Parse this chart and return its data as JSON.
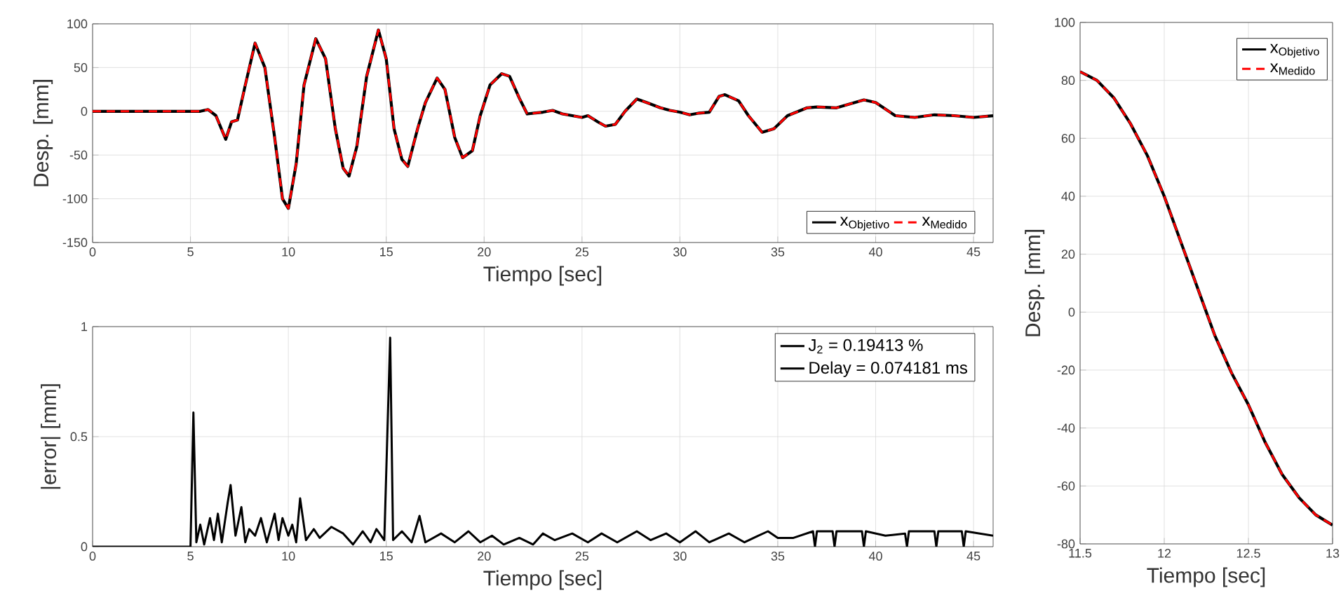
{
  "chart_data": [
    {
      "type": "line",
      "xlabel": "Tiempo [sec]",
      "ylabel": "Desp. [mm]",
      "xlim": [
        0,
        46
      ],
      "ylim": [
        -150,
        100
      ],
      "xticks": [
        0,
        5,
        10,
        15,
        20,
        25,
        30,
        35,
        40,
        45
      ],
      "yticks": [
        -150,
        -100,
        -50,
        0,
        50,
        100
      ],
      "grid": true,
      "legend": "bottom right",
      "x": [
        0,
        5.5,
        5.9,
        6.3,
        6.8,
        7.1,
        7.4,
        7.8,
        8.3,
        8.8,
        9.3,
        9.7,
        10.0,
        10.4,
        10.8,
        11.4,
        11.9,
        12.4,
        12.8,
        13.1,
        13.5,
        14.0,
        14.6,
        15.0,
        15.4,
        15.8,
        16.1,
        16.6,
        17.0,
        17.6,
        18.0,
        18.5,
        18.9,
        19.4,
        19.8,
        20.3,
        20.9,
        21.3,
        21.8,
        22.2,
        22.6,
        23.0,
        23.5,
        24,
        24.5,
        25,
        25.3,
        25.8,
        26.2,
        26.7,
        27.2,
        27.8,
        28.3,
        29,
        29.5,
        30,
        30.5,
        31,
        31.5,
        32.0,
        32.3,
        33,
        33.5,
        34.2,
        34.8,
        35.5,
        36.5,
        37,
        38,
        39.4,
        40,
        41,
        42,
        43,
        44,
        45,
        46
      ],
      "series": [
        {
          "name": "x$_{Objetivo}$",
          "color": "#000000",
          "line_style": "solid",
          "values": [
            0,
            0,
            2,
            -5,
            -32,
            -12,
            -10,
            30,
            78,
            50,
            -30,
            -100,
            -111,
            -60,
            30,
            83,
            60,
            -20,
            -65,
            -74,
            -40,
            40,
            93,
            60,
            -20,
            -55,
            -63,
            -20,
            10,
            38,
            25,
            -30,
            -53,
            -45,
            -5,
            30,
            43,
            40,
            15,
            -3,
            -2,
            -1,
            1,
            -3,
            -5,
            -7,
            -5,
            -12,
            -17,
            -15,
            0,
            14,
            10,
            4,
            1,
            -1,
            -4,
            -2,
            -1,
            17,
            19,
            12,
            -5,
            -24,
            -20,
            -5,
            4,
            5,
            4,
            13,
            10,
            -5,
            -7,
            -4,
            -5,
            -7,
            -5
          ]
        },
        {
          "name": "x$_{Medido}$",
          "color": "#ff0000",
          "line_style": "dashed",
          "values": [
            0,
            0,
            2,
            -5,
            -32,
            -12,
            -10,
            30,
            78,
            50,
            -30,
            -100,
            -111,
            -60,
            30,
            83,
            60,
            -20,
            -65,
            -74,
            -40,
            40,
            93,
            60,
            -20,
            -55,
            -63,
            -20,
            10,
            38,
            25,
            -30,
            -53,
            -45,
            -5,
            30,
            43,
            40,
            15,
            -3,
            -2,
            -1,
            1,
            -3,
            -5,
            -7,
            -5,
            -12,
            -17,
            -15,
            0,
            14,
            10,
            4,
            1,
            -1,
            -4,
            -2,
            -1,
            17,
            19,
            12,
            -5,
            -24,
            -20,
            -5,
            4,
            5,
            4,
            13,
            10,
            -5,
            -7,
            -4,
            -5,
            -7,
            -5
          ]
        }
      ]
    },
    {
      "type": "line",
      "xlabel": "Tiempo [sec]",
      "ylabel": "|error| [mm]",
      "xlim": [
        0,
        46
      ],
      "ylim": [
        0,
        1
      ],
      "xticks": [
        0,
        5,
        10,
        15,
        20,
        25,
        30,
        35,
        40,
        45
      ],
      "yticks": [
        0,
        0.5,
        1
      ],
      "grid": true,
      "legend": "top right",
      "annotations": [
        "Delay = 0.074181 ms"
      ],
      "x": [
        0,
        5.0,
        5.15,
        5.3,
        5.5,
        5.7,
        6.0,
        6.2,
        6.4,
        6.6,
        6.9,
        7.05,
        7.3,
        7.6,
        7.8,
        8.0,
        8.3,
        8.6,
        8.9,
        9.3,
        9.5,
        9.7,
        10,
        10.2,
        10.4,
        10.6,
        10.9,
        11.3,
        11.6,
        12.2,
        12.8,
        13.3,
        13.8,
        14.2,
        14.5,
        14.9,
        15.2,
        15.35,
        15.8,
        16.3,
        16.7,
        17,
        17.8,
        18.5,
        19.2,
        19.8,
        20.4,
        21,
        21.8,
        22.5,
        23,
        23.6,
        24.5,
        25.3,
        26,
        26.8,
        27.8,
        28.5,
        29.3,
        30,
        30.8,
        31.5,
        32.5,
        33.3,
        34,
        34.5,
        35,
        35.8,
        36.8,
        36.9,
        37,
        37.8,
        37.9,
        38,
        39.3,
        39.4,
        39.5,
        40.5,
        41.5,
        41.6,
        41.7,
        43,
        43.1,
        43.2,
        44.4,
        44.5,
        44.6,
        46
      ],
      "series": [
        {
          "name": "J$_{2}$ = 0.19413 %",
          "color": "#000000",
          "line_style": "solid",
          "values": [
            0,
            0,
            0.61,
            0.02,
            0.1,
            0.01,
            0.13,
            0.03,
            0.15,
            0.02,
            0.2,
            0.28,
            0.05,
            0.18,
            0.02,
            0.08,
            0.05,
            0.13,
            0.02,
            0.15,
            0.03,
            0.13,
            0.05,
            0.1,
            0.02,
            0.22,
            0.03,
            0.08,
            0.04,
            0.09,
            0.06,
            0.01,
            0.07,
            0.02,
            0.08,
            0.03,
            0.95,
            0.03,
            0.07,
            0.02,
            0.14,
            0.02,
            0.06,
            0.02,
            0.07,
            0.02,
            0.05,
            0.01,
            0.04,
            0.01,
            0.06,
            0.03,
            0.06,
            0.02,
            0.06,
            0.02,
            0.07,
            0.03,
            0.06,
            0.02,
            0.07,
            0.02,
            0.06,
            0.02,
            0.05,
            0.07,
            0.04,
            0.04,
            0.07,
            0,
            0.07,
            0.07,
            0,
            0.07,
            0.07,
            0,
            0.07,
            0.05,
            0.06,
            0,
            0.07,
            0.07,
            0,
            0.07,
            0.07,
            0,
            0.07,
            0.05
          ]
        }
      ]
    },
    {
      "type": "line",
      "xlabel": "Tiempo [sec]",
      "ylabel": "Desp. [mm]",
      "xlim": [
        11.5,
        13
      ],
      "ylim": [
        -80,
        100
      ],
      "xticks": [
        11.5,
        12,
        12.5,
        13
      ],
      "yticks": [
        -80,
        -60,
        -40,
        -20,
        0,
        20,
        40,
        60,
        80,
        100
      ],
      "grid": true,
      "legend": "top right",
      "x": [
        11.5,
        11.6,
        11.7,
        11.8,
        11.9,
        12.0,
        12.1,
        12.2,
        12.3,
        12.4,
        12.5,
        12.6,
        12.7,
        12.8,
        12.9,
        13.0
      ],
      "series": [
        {
          "name": "x$_{Objetivo}$",
          "color": "#000000",
          "line_style": "solid",
          "values": [
            83,
            80,
            74,
            65,
            54,
            40,
            24,
            8,
            -8,
            -21,
            -32,
            -45,
            -56,
            -64,
            -70,
            -73.5
          ]
        },
        {
          "name": "x$_{Medido}$",
          "color": "#ff0000",
          "line_style": "dashed",
          "values": [
            83,
            80,
            74,
            65,
            54,
            40,
            24,
            8,
            -8,
            -21,
            -32,
            -45,
            -56,
            -64,
            -70,
            -73.5
          ]
        }
      ]
    }
  ]
}
